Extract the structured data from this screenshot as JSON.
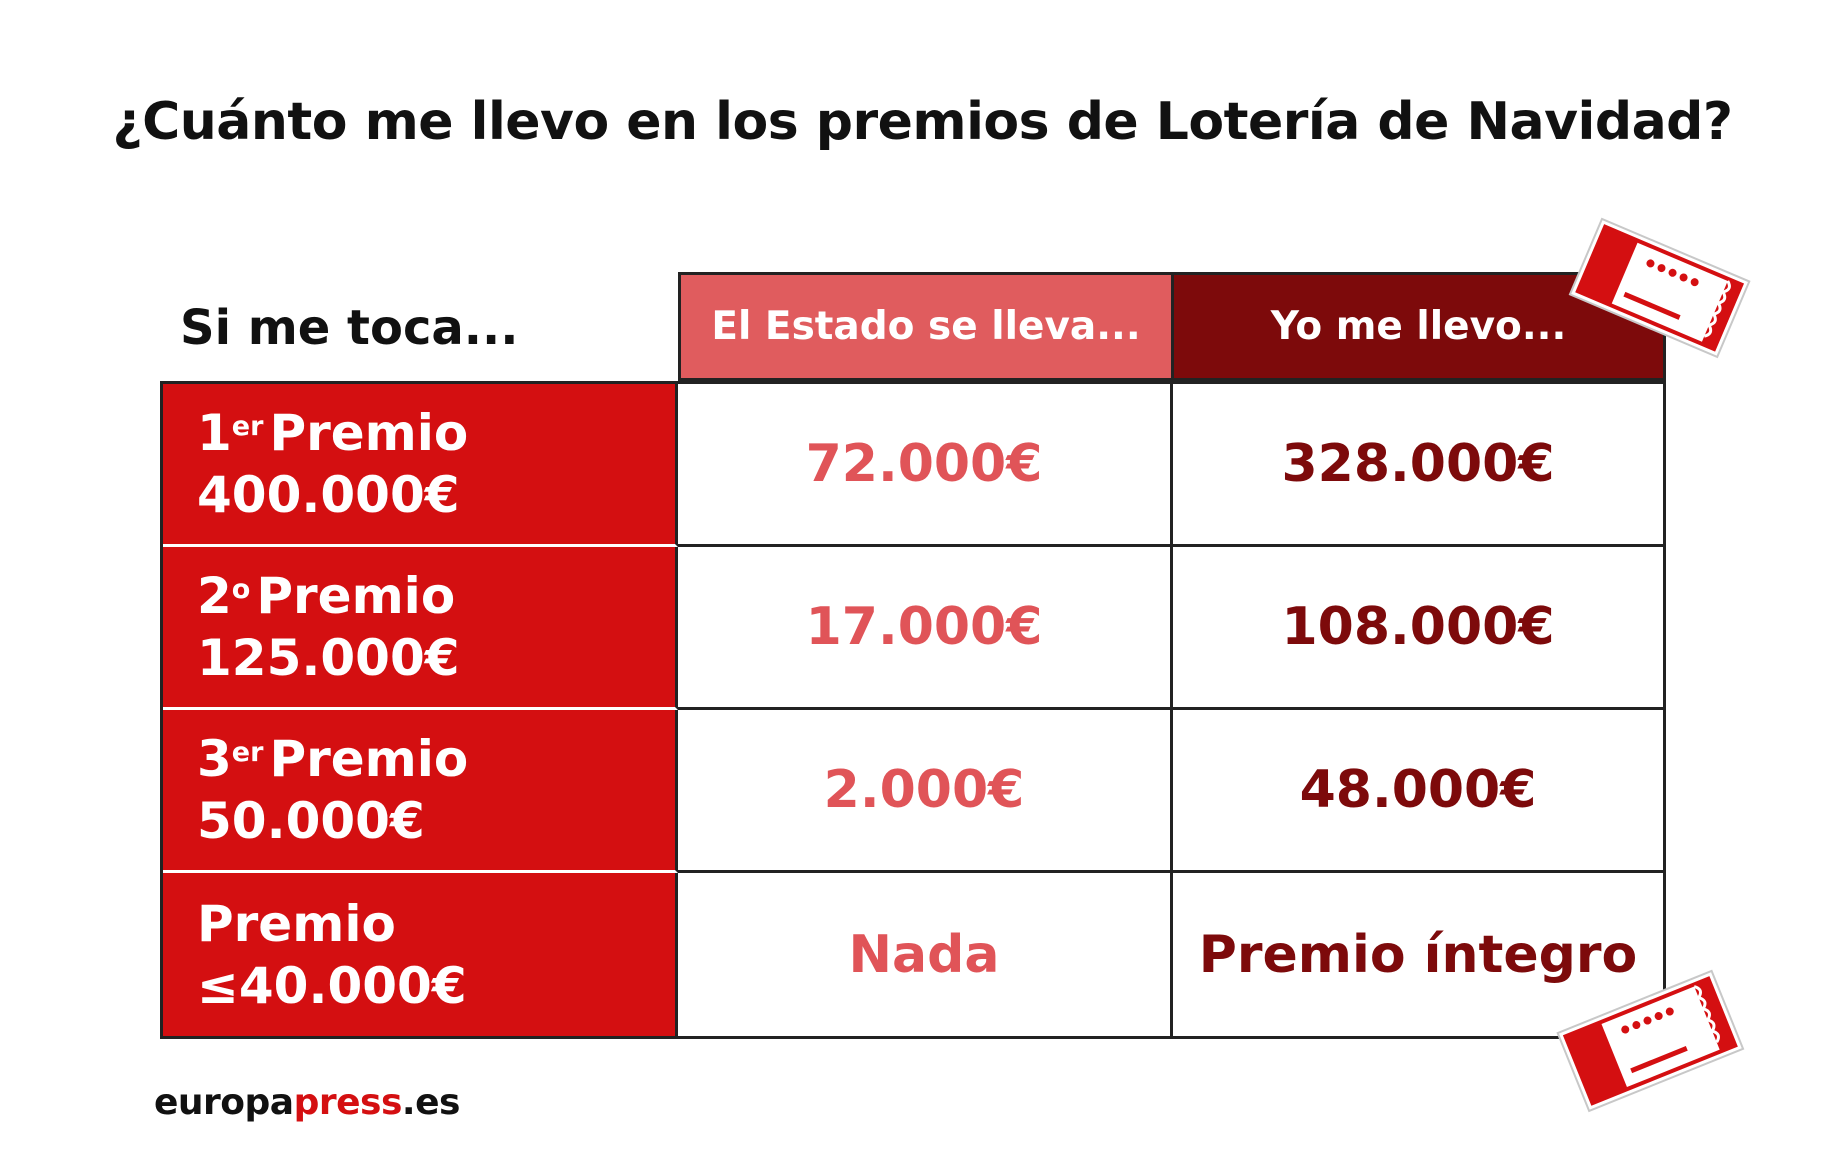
{
  "title": "¿Cuánto me llevo en los premios de Lotería de Navidad?",
  "row_header": "Si me toca...",
  "columns": {
    "estado": "El Estado se lleva...",
    "yo": "Yo me llevo..."
  },
  "rows": [
    {
      "ordinal": "1",
      "suffix": "er",
      "label": "Premio",
      "amount": "400.000€",
      "estado": "72.000€",
      "yo": "328.000€"
    },
    {
      "ordinal": "2",
      "suffix": "o",
      "label": "Premio",
      "amount": "125.000€",
      "estado": "17.000€",
      "yo": "108.000€"
    },
    {
      "ordinal": "3",
      "suffix": "er",
      "label": "Premio",
      "amount": "50.000€",
      "estado": "2.000€",
      "yo": "48.000€"
    },
    {
      "ordinal": "",
      "suffix": "",
      "label": "Premio",
      "amount": "≤40.000€",
      "estado": "Nada",
      "yo": "Premio íntegro"
    }
  ],
  "logo": {
    "part1": "europa",
    "part2": "press",
    "part3": ".es"
  },
  "colors": {
    "prize_red": "#d40f11",
    "estado_header": "#e05c5e",
    "yo_header": "#7d0a0b",
    "estado_text": "#e05458",
    "yo_text": "#7d0a0b"
  },
  "decorations": [
    "lottery-ticket-icon",
    "lottery-ticket-icon"
  ]
}
